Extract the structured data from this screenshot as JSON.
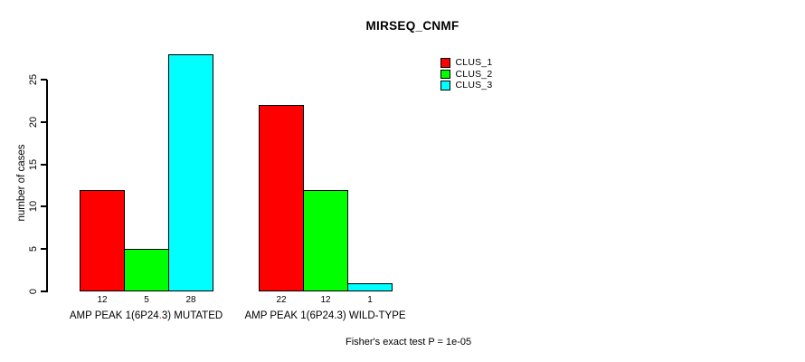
{
  "title": "MIRSEQ_CNMF",
  "ylabel": "number of cases",
  "footnote": "Fisher's exact test P = 1e-05",
  "x_labels": {
    "group1": {
      "pre": "AMP PEAK 1(6P24",
      "dot": ".",
      "post": "3) MUTATED"
    },
    "group2": "AMP PEAK 1(6P24.3) WILD-TYPE"
  },
  "chart_data": {
    "type": "bar",
    "title": "MIRSEQ_CNMF",
    "xlabel": "",
    "ylabel": "number of cases",
    "categories": [
      "AMP PEAK 1(6P24.3) MUTATED",
      "AMP PEAK 1(6P24.3) WILD-TYPE"
    ],
    "series": [
      {
        "name": "CLUS_1",
        "color": "#ff0000",
        "values": [
          12,
          22
        ]
      },
      {
        "name": "CLUS_2",
        "color": "#00ff00",
        "values": [
          5,
          12
        ]
      },
      {
        "name": "CLUS_3",
        "color": "#00ffff",
        "values": [
          28,
          1
        ]
      }
    ],
    "bar_value_labels": [
      [
        12,
        5,
        28
      ],
      [
        22,
        12,
        1
      ]
    ],
    "ylim": [
      0,
      28
    ],
    "yticks": [
      0,
      5,
      10,
      15,
      20,
      25
    ],
    "grid": false,
    "legend_position": "top-right",
    "annotation": "Fisher's exact test P = 1e-05"
  }
}
